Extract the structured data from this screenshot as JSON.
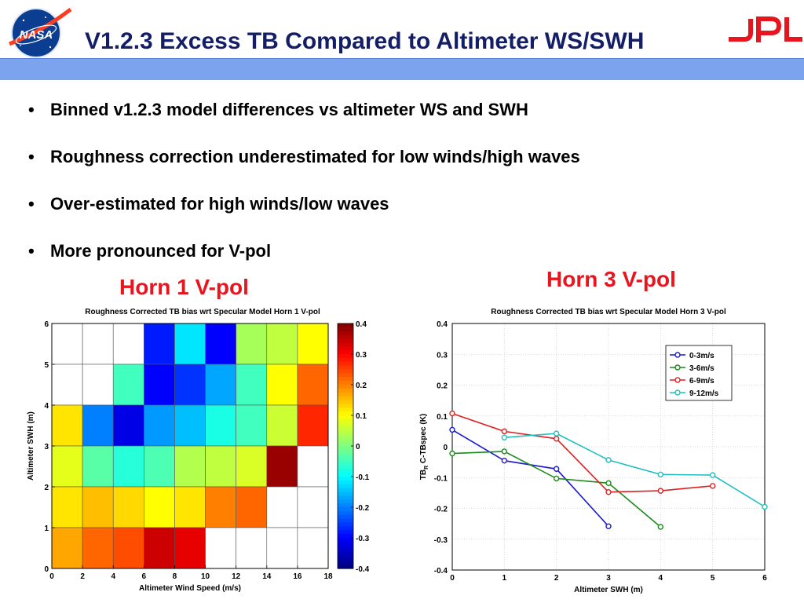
{
  "slide": {
    "title": "V1.2.3 Excess TB Compared to Altimeter WS/SWH",
    "bullets": [
      "Binned v1.2.3 model differences vs altimeter WS and SWH",
      "Roughness correction underestimated for low winds/high waves",
      "Over-estimated for high winds/low waves",
      "More pronounced for V-pol"
    ],
    "horn1_label": "Horn 1 V-pol",
    "horn3_label": "Horn 3 V-pol",
    "logos": {
      "left": "NASA",
      "right": "JPL"
    },
    "colors": {
      "title": "#141e66",
      "bar": "#7ba3ee",
      "horn_label": "#e8141e",
      "jpl": "#e8141e"
    }
  },
  "chart_data": [
    {
      "type": "heatmap",
      "title": "Roughness Corrected TB bias wrt Specular Model Horn 1 V-pol",
      "xlabel": "Altimeter Wind Speed (m/s)",
      "ylabel": "Altimeter SWH (m)",
      "x_ticks": [
        0,
        2,
        4,
        6,
        8,
        10,
        12,
        14,
        16,
        18
      ],
      "y_ticks": [
        0,
        1,
        2,
        3,
        4,
        5,
        6
      ],
      "x_edges": [
        0,
        2,
        4,
        6,
        8,
        10,
        12,
        14,
        16,
        18
      ],
      "y_edges": [
        0,
        1,
        2,
        3,
        4,
        5,
        6
      ],
      "clim": [
        -0.4,
        0.4
      ],
      "colorbar_ticks": [
        "0.4",
        "0.3",
        "0.2",
        "0.1",
        "0",
        "-0.1",
        "-0.2",
        "-0.3",
        "-0.4"
      ],
      "colormap": "jet",
      "rows_top_to_bottom": [
        [
          null,
          null,
          null,
          -0.28,
          -0.12,
          -0.3,
          0.03,
          0.05,
          0.1
        ],
        [
          null,
          null,
          -0.05,
          -0.3,
          -0.26,
          -0.17,
          -0.05,
          0.1,
          0.22
        ],
        [
          0.12,
          -0.2,
          -0.32,
          -0.18,
          -0.15,
          -0.08,
          -0.05,
          0.06,
          0.27
        ],
        [
          0.08,
          -0.03,
          -0.07,
          -0.04,
          0.04,
          0.05,
          0.07,
          0.38,
          null
        ],
        [
          0.12,
          0.15,
          0.13,
          0.1,
          0.12,
          0.2,
          0.22,
          null,
          null
        ],
        [
          0.17,
          0.22,
          0.24,
          0.34,
          0.32,
          null,
          null,
          null,
          null
        ]
      ]
    },
    {
      "type": "line",
      "title": "Roughness Corrected TB bias wrt Specular Model Horn 3 V-pol",
      "xlabel": "Altimeter SWH (m)",
      "ylabel": "TB_R C-TBspec (K)",
      "xlim": [
        0,
        6
      ],
      "ylim": [
        -0.4,
        0.4
      ],
      "x_ticks": [
        0,
        1,
        2,
        3,
        4,
        5,
        6
      ],
      "y_ticks": [
        0.4,
        0.3,
        0.2,
        0.1,
        0,
        -0.1,
        -0.2,
        -0.3,
        -0.4
      ],
      "grid": true,
      "legend_position": "top-right",
      "series": [
        {
          "name": "0-3m/s",
          "color": "#1a1acc",
          "points": [
            [
              0,
              0.055
            ],
            [
              1,
              -0.045
            ],
            [
              2,
              -0.072
            ],
            [
              3,
              -0.258
            ]
          ]
        },
        {
          "name": "3-6m/s",
          "color": "#1a8a1a",
          "points": [
            [
              0,
              -0.022
            ],
            [
              1,
              -0.015
            ],
            [
              2,
              -0.103
            ],
            [
              3,
              -0.118
            ],
            [
              4,
              -0.26
            ]
          ]
        },
        {
          "name": "6-9m/s",
          "color": "#e02020",
          "points": [
            [
              0,
              0.108
            ],
            [
              1,
              0.05
            ],
            [
              2,
              0.026
            ],
            [
              3,
              -0.147
            ],
            [
              4,
              -0.143
            ],
            [
              5,
              -0.127
            ]
          ]
        },
        {
          "name": "9-12m/s",
          "color": "#22bfbf",
          "points": [
            [
              1,
              0.03
            ],
            [
              2,
              0.043
            ],
            [
              3,
              -0.043
            ],
            [
              4,
              -0.09
            ],
            [
              5,
              -0.092
            ],
            [
              6,
              -0.195
            ]
          ]
        }
      ]
    }
  ]
}
